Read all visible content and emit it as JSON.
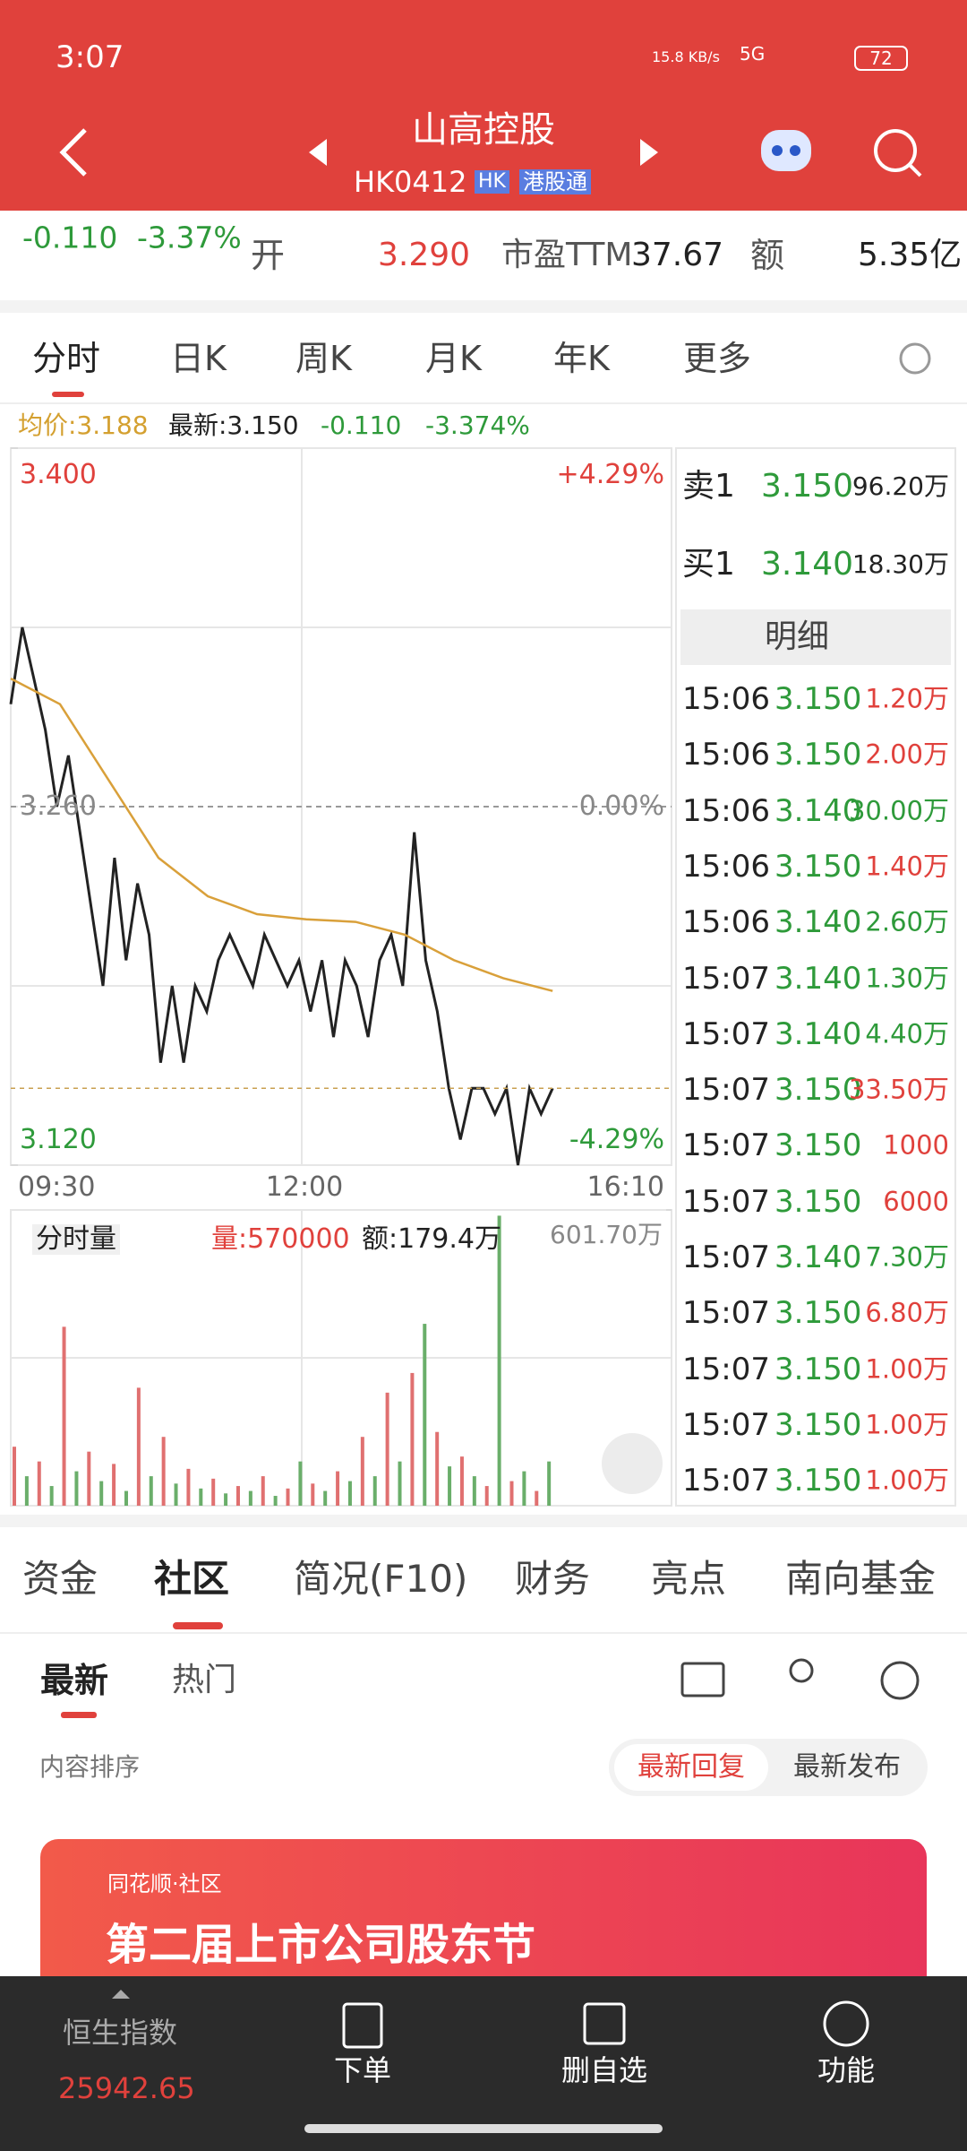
{
  "status_bar": {
    "time": "3:07",
    "net_speed": "15.8 KB/s",
    "signal": "5G",
    "battery": "72"
  },
  "header": {
    "title": "山高控股",
    "code": "HK0412",
    "badge_hk": "HK",
    "badge_connect": "港股通"
  },
  "quote": {
    "change": "-0.110",
    "change_pct": "-3.37%",
    "open_label": "开",
    "open": "3.290",
    "pe_label": "市盈TTM",
    "pe": "37.67",
    "amount_label": "额",
    "amount": "5.35亿"
  },
  "chart_tabs": [
    "分时",
    "日K",
    "周K",
    "月K",
    "年K",
    "更多"
  ],
  "info_line": {
    "avg": "均价:3.188",
    "latest": "最新:3.150",
    "change": "-0.110",
    "change_pct": "-3.374%"
  },
  "chart_data": {
    "type": "line",
    "ylim": [
      3.12,
      3.4
    ],
    "yticks": [
      {
        "value": 3.4,
        "label": "3.400"
      },
      {
        "value": 3.26,
        "label": "3.260"
      },
      {
        "value": 3.12,
        "label": "3.120"
      }
    ],
    "y2lim": [
      -4.29,
      4.29
    ],
    "y2ticks": [
      {
        "value": 4.29,
        "label": "+4.29%"
      },
      {
        "value": 0,
        "label": "0.00%"
      },
      {
        "value": -4.29,
        "label": "-4.29%"
      }
    ],
    "xticks": [
      "09:30",
      "12:00",
      "16:10"
    ],
    "series": [
      {
        "color": "#222222",
        "values": [
          3.3,
          3.33,
          3.31,
          3.29,
          3.26,
          3.28,
          3.25,
          3.22,
          3.19,
          3.24,
          3.2,
          3.23,
          3.21,
          3.16,
          3.19,
          3.16,
          3.19,
          3.18,
          3.2,
          3.21,
          3.2,
          3.19,
          3.21,
          3.2,
          3.19,
          3.2,
          3.18,
          3.2,
          3.17,
          3.2,
          3.19,
          3.17,
          3.2,
          3.21,
          3.19,
          3.25,
          3.2,
          3.18,
          3.15,
          3.13,
          3.15,
          3.15,
          3.14,
          3.15,
          3.12,
          3.15,
          3.14,
          3.15
        ]
      },
      {
        "color": "#d9a03a",
        "values": [
          3.31,
          3.3,
          3.27,
          3.24,
          3.225,
          3.218,
          3.216,
          3.215,
          3.21,
          3.2,
          3.193,
          3.188
        ]
      }
    ]
  },
  "volume": {
    "type": "bar",
    "label": "分时量",
    "vol": "量:570000",
    "amt": "额:179.4万",
    "ylim": [
      0,
      601.7
    ],
    "yticks": [
      {
        "value": 601.7,
        "label": "601.70万"
      }
    ],
    "colors": [
      "#e07070",
      "#6aae6a"
    ],
    "values": [
      120,
      60,
      90,
      40,
      364,
      70,
      110,
      50,
      85,
      30,
      240,
      60,
      140,
      45,
      75,
      35,
      55,
      25,
      40,
      30,
      60,
      20,
      35,
      90,
      45,
      30,
      70,
      50,
      140,
      60,
      230,
      90,
      270,
      370,
      150,
      80,
      100,
      60,
      40,
      590,
      50,
      70,
      30,
      90
    ]
  },
  "order_book": {
    "sell_label": "卖1",
    "sell_price": "3.150",
    "sell_vol": "96.20万",
    "buy_label": "买1",
    "buy_price": "3.140",
    "buy_vol": "18.30万",
    "detail": "明细"
  },
  "trades": [
    {
      "time": "15:06",
      "price": "3.150",
      "vol": "1.20万",
      "color": "#e0413c"
    },
    {
      "time": "15:06",
      "price": "3.150",
      "vol": "2.00万",
      "color": "#e0413c"
    },
    {
      "time": "15:06",
      "price": "3.140",
      "vol": "30.00万",
      "color": "#2e9a3a"
    },
    {
      "time": "15:06",
      "price": "3.150",
      "vol": "1.40万",
      "color": "#e0413c"
    },
    {
      "time": "15:06",
      "price": "3.140",
      "vol": "2.60万",
      "color": "#2e9a3a"
    },
    {
      "time": "15:07",
      "price": "3.140",
      "vol": "1.30万",
      "color": "#2e9a3a"
    },
    {
      "time": "15:07",
      "price": "3.140",
      "vol": "4.40万",
      "color": "#2e9a3a"
    },
    {
      "time": "15:07",
      "price": "3.150",
      "vol": "33.50万",
      "color": "#e0413c"
    },
    {
      "time": "15:07",
      "price": "3.150",
      "vol": "1000",
      "color": "#e0413c"
    },
    {
      "time": "15:07",
      "price": "3.150",
      "vol": "6000",
      "color": "#e0413c"
    },
    {
      "time": "15:07",
      "price": "3.140",
      "vol": "7.30万",
      "color": "#2e9a3a"
    },
    {
      "time": "15:07",
      "price": "3.150",
      "vol": "6.80万",
      "color": "#e0413c"
    },
    {
      "time": "15:07",
      "price": "3.150",
      "vol": "1.00万",
      "color": "#e0413c"
    },
    {
      "time": "15:07",
      "price": "3.150",
      "vol": "1.00万",
      "color": "#e0413c"
    },
    {
      "time": "15:07",
      "price": "3.150",
      "vol": "1.00万",
      "color": "#e0413c"
    }
  ],
  "section_tabs": [
    "资金",
    "社区",
    "简况(F10)",
    "财务",
    "亮点",
    "南向基金"
  ],
  "community": {
    "tabs": [
      "最新",
      "热门"
    ],
    "sort_label": "内容排序",
    "sort_options": [
      "最新回复",
      "最新发布"
    ],
    "banner_brand": "同花顺·社区",
    "banner_title": "第二届上市公司股东节"
  },
  "bottom_bar": {
    "index_name": "恒生指数",
    "index_value": "25942.65",
    "actions": [
      "下单",
      "删自选",
      "功能"
    ]
  }
}
